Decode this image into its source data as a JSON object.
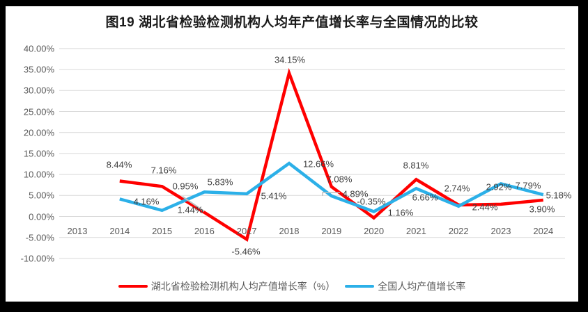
{
  "figure": {
    "title": "图19  湖北省检验检测机构人均年产值增长率与全国情况的比较"
  },
  "chart_data": {
    "type": "line",
    "title": "图19  湖北省检验检测机构人均年产值增长率与全国情况的比较",
    "categories": [
      "2013",
      "2014",
      "2015",
      "2016",
      "2017",
      "2018",
      "2019",
      "2020",
      "2021",
      "2022",
      "2023",
      "2024"
    ],
    "series": [
      {
        "name": "湖北省检验检测机构人均产值增长率（%）",
        "color": "#FF0000",
        "values": [
          null,
          8.44,
          7.16,
          0.95,
          -5.46,
          34.15,
          7.08,
          -0.35,
          8.81,
          2.74,
          2.92,
          3.9
        ],
        "labels": [
          "8.44%",
          "7.16%",
          "0.95%",
          "-5.46%",
          "34.15%",
          "7.08%",
          "-0.35%",
          "8.81%",
          "2.74%",
          "2.92%",
          "3.90%"
        ]
      },
      {
        "name": "全国人均产值增长率",
        "color": "#2CB0E8",
        "values": [
          null,
          4.16,
          1.44,
          5.83,
          5.41,
          12.66,
          4.89,
          1.16,
          6.66,
          2.44,
          7.79,
          5.18
        ],
        "labels": [
          "4.16%",
          "1.44%",
          "5.83%",
          "5.41%",
          "12.66%",
          "4.89%",
          "1.16%",
          "6.66%",
          "2.44%",
          "7.79%",
          "5.18%"
        ]
      }
    ],
    "ylim": [
      -10,
      40
    ],
    "ytick_step": 5,
    "ytick_labels": [
      "40.00%",
      "35.00%",
      "30.00%",
      "25.00%",
      "20.00%",
      "15.00%",
      "10.00%",
      "5.00%",
      "0.00%",
      "-5.00%",
      "-10.00%"
    ],
    "grid": true,
    "legend_position": "bottom",
    "colors": {
      "grid": "#D9D9D9",
      "axis_text": "#595959",
      "data_label_text": "#404040",
      "leader_line": "#BFBFBF",
      "frame": "#000000",
      "background": "#FFFFFF"
    }
  }
}
